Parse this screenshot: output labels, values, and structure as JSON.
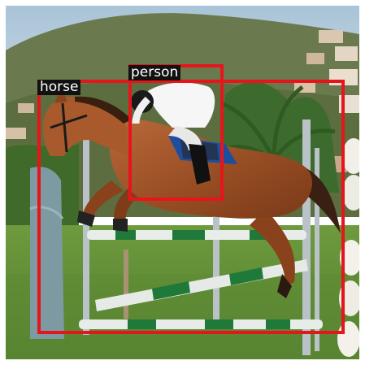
{
  "detections": [
    {
      "label": "horse"
    },
    {
      "label": "person"
    }
  ],
  "colors": {
    "box": "#e8141b",
    "label_bg": "#111111",
    "label_text": "#ffffff"
  }
}
